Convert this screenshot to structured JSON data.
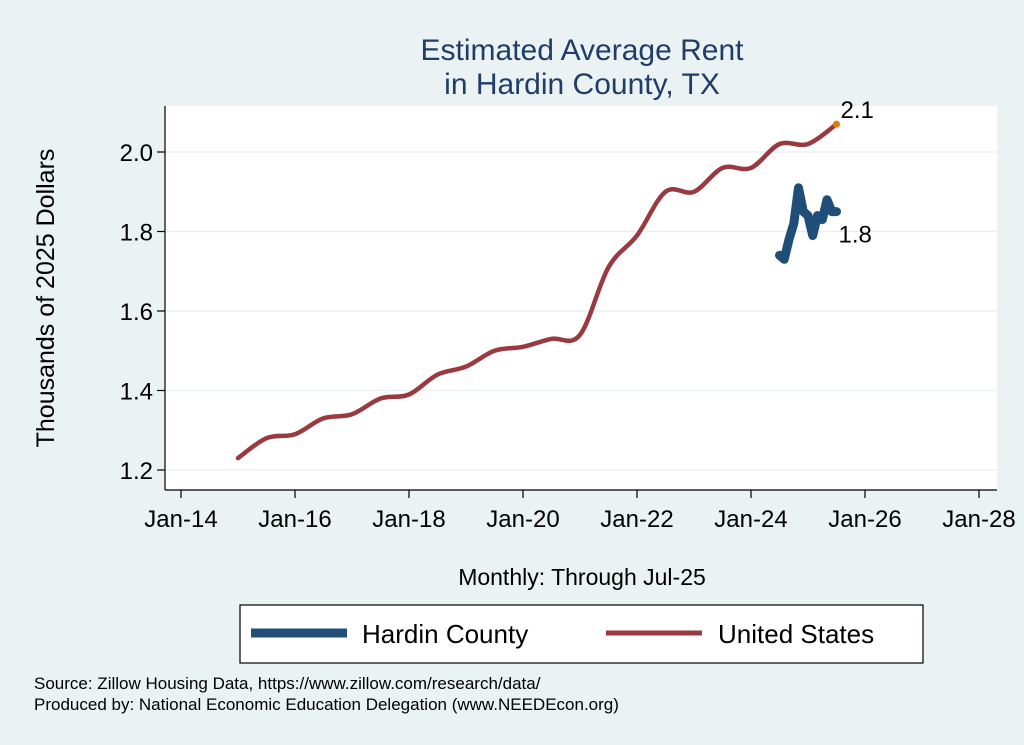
{
  "chart_data": {
    "type": "line",
    "title_lines": [
      "Estimated Average Rent",
      "in Hardin County, TX"
    ],
    "xlabel": "Monthly: Through Jul-25",
    "ylabel": "Thousands of 2025 Dollars",
    "x_ticks": [
      "Jan-14",
      "Jan-16",
      "Jan-18",
      "Jan-20",
      "Jan-22",
      "Jan-24",
      "Jan-26",
      "Jan-28"
    ],
    "y_ticks": [
      "1.2",
      "1.4",
      "1.6",
      "1.8",
      "2.0"
    ],
    "y_tick_values": [
      1.2,
      1.4,
      1.6,
      1.8,
      2.0
    ],
    "xlim": [
      "Jan-14",
      "Jan-28"
    ],
    "ylim": [
      1.18,
      2.12
    ],
    "grid": "horizontal",
    "legend_position": "bottom",
    "series": [
      {
        "name": "Hardin County",
        "color": "#1f4e79",
        "end_label": "1.8",
        "x": [
          "Jul-24",
          "Aug-24",
          "Sep-24",
          "Oct-24",
          "Nov-24",
          "Dec-24",
          "Jan-25",
          "Feb-25",
          "Mar-25",
          "Apr-25",
          "May-25",
          "Jun-25",
          "Jul-25"
        ],
        "y": [
          1.74,
          1.73,
          1.78,
          1.82,
          1.91,
          1.85,
          1.84,
          1.79,
          1.84,
          1.83,
          1.88,
          1.85,
          1.85
        ]
      },
      {
        "name": "United States",
        "color": "#983a3f",
        "end_label": "2.1",
        "x": [
          "Jan-15",
          "Jul-15",
          "Jan-16",
          "Jul-16",
          "Jan-17",
          "Jul-17",
          "Jan-18",
          "Jul-18",
          "Jan-19",
          "Jul-19",
          "Jan-20",
          "Jul-20",
          "Jan-21",
          "Jul-21",
          "Jan-22",
          "Jul-22",
          "Jan-23",
          "Jul-23",
          "Jan-24",
          "Jul-24",
          "Jan-25",
          "Jul-25"
        ],
        "y": [
          1.23,
          1.28,
          1.29,
          1.33,
          1.34,
          1.38,
          1.39,
          1.44,
          1.46,
          1.5,
          1.51,
          1.53,
          1.54,
          1.71,
          1.79,
          1.9,
          1.9,
          1.96,
          1.96,
          2.02,
          2.02,
          2.07
        ]
      }
    ]
  },
  "source_lines": [
    "Source: Zillow Housing Data, https://www.zillow.com/research/data/",
    "Produced by: National Economic Education Delegation (www.NEEDEcon.org)"
  ]
}
